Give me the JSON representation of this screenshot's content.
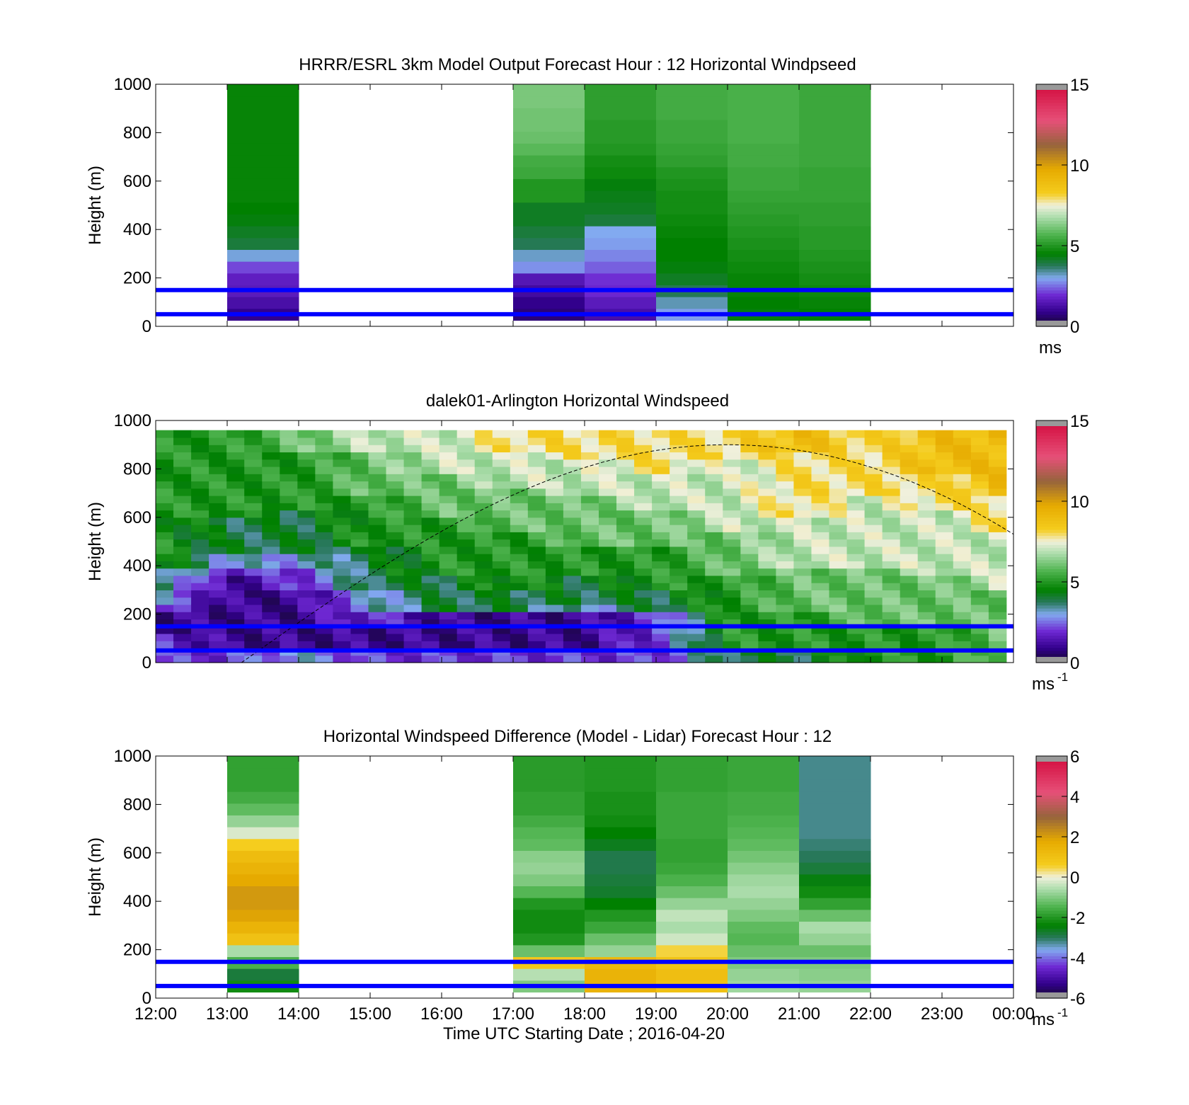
{
  "figure": {
    "xlabel": "Time UTC  Starting Date ; 2016-04-20",
    "x_ticks": [
      "12:00",
      "13:00",
      "14:00",
      "15:00",
      "16:00",
      "17:00",
      "18:00",
      "19:00",
      "20:00",
      "21:00",
      "22:00",
      "23:00",
      "00:00"
    ]
  },
  "chart_data": [
    {
      "type": "heatmap",
      "title": "HRRR/ESRL 3km Model Output   Forecast Hour : 12 Horizontal Windpseed",
      "ylabel": "Height (m)",
      "y_ticks": [
        "0",
        "200",
        "400",
        "600",
        "800",
        "1000"
      ],
      "xlim_hours": [
        12,
        24
      ],
      "ylim": [
        0,
        1000
      ],
      "colorbar": {
        "ticks": [
          "0",
          "5",
          "10",
          "15"
        ],
        "range": [
          0,
          15
        ],
        "unit": "ms"
      },
      "reference_lines_m": [
        50,
        150
      ],
      "columns": [
        {
          "t": 13,
          "h": [
            0.9,
            1.3,
            1.6,
            1.7,
            2.2,
            3.1,
            4.0,
            4.2,
            4.4,
            4.5,
            4.6,
            4.6,
            4.6,
            4.6,
            4.6,
            4.6,
            4.6,
            4.6,
            4.6,
            4.6
          ]
        },
        {
          "t": 17,
          "h": [
            0.7,
            0.9,
            1.2,
            1.5,
            2.8,
            3.2,
            3.8,
            4.0,
            4.2,
            4.2,
            5.0,
            5.0,
            5.4,
            5.5,
            5.8,
            6.0,
            6.1,
            6.1,
            6.2,
            6.2
          ]
        },
        {
          "t": 18,
          "h": [
            1.3,
            1.6,
            1.9,
            2.0,
            2.4,
            2.7,
            2.9,
            3.0,
            4.0,
            4.2,
            4.3,
            4.4,
            4.7,
            4.8,
            5.0,
            5.1,
            5.1,
            5.2,
            5.2,
            5.2
          ]
        },
        {
          "t": 19,
          "h": [
            2.9,
            3.3,
            3.8,
            4.2,
            4.4,
            4.5,
            4.5,
            4.6,
            4.7,
            4.8,
            4.8,
            4.9,
            5.0,
            5.2,
            5.3,
            5.4,
            5.4,
            5.5,
            5.5,
            5.5
          ]
        },
        {
          "t": 20,
          "h": [
            4.4,
            4.5,
            4.6,
            4.6,
            4.7,
            4.8,
            4.9,
            5.0,
            5.1,
            5.2,
            5.3,
            5.4,
            5.4,
            5.5,
            5.5,
            5.6,
            5.6,
            5.6,
            5.6,
            5.6
          ]
        },
        {
          "t": 21,
          "h": [
            4.5,
            4.6,
            4.7,
            4.8,
            4.9,
            5.0,
            5.1,
            5.1,
            5.2,
            5.2,
            5.3,
            5.3,
            5.3,
            5.4,
            5.4,
            5.4,
            5.4,
            5.4,
            5.4,
            5.4
          ]
        }
      ]
    },
    {
      "type": "heatmap",
      "title": "dalek01-Arlington  Horizontal Windspeed",
      "ylabel": "Height (m)",
      "y_ticks": [
        "0",
        "200",
        "400",
        "600",
        "800",
        "1000"
      ],
      "xlim_hours": [
        12,
        24
      ],
      "ylim": [
        0,
        1000
      ],
      "colorbar": {
        "ticks": [
          "0",
          "5",
          "10",
          "15"
        ],
        "range": [
          0,
          15
        ],
        "unit": "ms",
        "unit_exp": "-1"
      },
      "reference_lines_m": [
        50,
        150
      ],
      "boundary_layer_curve": {
        "x_hours": [
          13.2,
          20,
          24
        ],
        "y_m": [
          0,
          900,
          530
        ]
      },
      "description_grid": "interpolated field, see profile keys",
      "profiles": [
        {
          "t": 12.0,
          "h": [
            2,
            2,
            1,
            1,
            2,
            3,
            4,
            4,
            5,
            5,
            5,
            5,
            5,
            5,
            5,
            5,
            5,
            5,
            5,
            5
          ]
        },
        {
          "t": 13.0,
          "h": [
            2,
            1,
            1,
            1,
            1,
            1,
            1,
            2,
            3,
            4,
            4,
            4,
            5,
            5,
            5,
            5,
            5,
            5,
            5,
            5
          ]
        },
        {
          "t": 14.0,
          "h": [
            3,
            1,
            1,
            1,
            1,
            1,
            2,
            2,
            3,
            4,
            4,
            4,
            4,
            5,
            5,
            5,
            5,
            5,
            6,
            6
          ]
        },
        {
          "t": 15.0,
          "h": [
            2,
            1,
            1,
            2,
            3,
            3,
            4,
            4,
            4,
            4,
            5,
            5,
            5,
            5,
            6,
            6,
            6,
            6,
            7,
            7
          ]
        },
        {
          "t": 16.0,
          "h": [
            2,
            1,
            1,
            1,
            4,
            4,
            4,
            5,
            5,
            5,
            5,
            5,
            6,
            6,
            6,
            6,
            7,
            7,
            7,
            7
          ]
        },
        {
          "t": 17.0,
          "h": [
            2,
            1,
            1,
            1,
            4,
            4,
            5,
            5,
            5,
            5,
            5,
            6,
            6,
            6,
            6,
            7,
            7,
            7,
            8,
            8
          ]
        },
        {
          "t": 18.0,
          "h": [
            2,
            1,
            1,
            1,
            3,
            4,
            4,
            5,
            5,
            5,
            6,
            6,
            6,
            6,
            7,
            7,
            7,
            8,
            8,
            8
          ]
        },
        {
          "t": 19.0,
          "h": [
            2,
            2,
            2,
            2,
            4,
            4,
            5,
            5,
            5,
            5,
            6,
            6,
            6,
            7,
            7,
            7,
            8,
            8,
            8,
            8
          ]
        },
        {
          "t": 20.0,
          "h": [
            4,
            5,
            5,
            5,
            5,
            5,
            5,
            6,
            6,
            6,
            6,
            7,
            7,
            7,
            7,
            7,
            7,
            8,
            8,
            8
          ]
        },
        {
          "t": 21.0,
          "h": [
            4,
            5,
            5,
            5,
            6,
            6,
            6,
            6,
            7,
            7,
            7,
            7,
            8,
            8,
            8,
            8,
            8,
            8,
            9,
            9
          ]
        },
        {
          "t": 22.0,
          "h": [
            5,
            5,
            5,
            6,
            6,
            6,
            6,
            6,
            7,
            7,
            7,
            7,
            7,
            7,
            8,
            8,
            8,
            8,
            8,
            8
          ]
        },
        {
          "t": 23.0,
          "h": [
            5,
            5,
            5,
            6,
            6,
            6,
            6,
            7,
            7,
            7,
            7,
            7,
            7,
            8,
            8,
            8,
            9,
            9,
            9,
            9
          ]
        },
        {
          "t": 23.8,
          "h": [
            6,
            6,
            6,
            6,
            6,
            6,
            7,
            7,
            7,
            7,
            7,
            8,
            8,
            8,
            9,
            9,
            9,
            9,
            9,
            9
          ]
        }
      ]
    },
    {
      "type": "heatmap",
      "title": "Horizontal Windspeed Difference (Model - Lidar) Forecast Hour : 12",
      "ylabel": "Height (m)",
      "y_ticks": [
        "0",
        "200",
        "400",
        "600",
        "800",
        "1000"
      ],
      "xlim_hours": [
        12,
        24
      ],
      "ylim": [
        0,
        1000
      ],
      "colorbar": {
        "ticks": [
          "-6",
          "-4",
          "-2",
          "0",
          "2",
          "4",
          "6"
        ],
        "range": [
          -6,
          6
        ],
        "unit": "ms",
        "unit_exp": "-1"
      },
      "reference_lines_m": [
        50,
        150
      ],
      "columns": [
        {
          "t": 13,
          "h": [
            -2.2,
            -2.8,
            -1.5,
            -0.6,
            1.0,
            1.5,
            1.9,
            2.1,
            2.1,
            1.8,
            1.5,
            1.2,
            0.6,
            -0.2,
            -0.8,
            -1.3,
            -1.6,
            -1.8,
            -1.8,
            -1.8
          ]
        },
        {
          "t": 17,
          "h": [
            -1.0,
            -0.5,
            0.8,
            -1.2,
            -2.0,
            -2.2,
            -2.2,
            -2.0,
            -1.4,
            -1.0,
            -0.8,
            -0.9,
            -1.3,
            -1.4,
            -1.6,
            -1.8,
            -1.8,
            -1.9,
            -1.9,
            -1.9
          ]
        },
        {
          "t": 18,
          "h": [
            1.5,
            1.5,
            1.3,
            -0.8,
            -1.2,
            -1.7,
            -2.0,
            -2.4,
            -2.7,
            -2.8,
            -2.9,
            -2.9,
            -2.6,
            -2.4,
            -2.2,
            -2.1,
            -2.1,
            -2.0,
            -2.0,
            -2.0
          ]
        },
        {
          "t": 19,
          "h": [
            1.0,
            1.1,
            0.9,
            0.5,
            -0.3,
            -0.6,
            -0.4,
            -0.8,
            -1.2,
            -1.5,
            -1.7,
            -1.8,
            -1.8,
            -1.7,
            -1.7,
            -1.7,
            -1.7,
            -1.8,
            -1.8,
            -1.8
          ]
        },
        {
          "t": 20,
          "h": [
            -0.7,
            -0.8,
            -1.0,
            -1.2,
            -1.4,
            -1.3,
            -1.0,
            -0.8,
            -0.6,
            -0.7,
            -0.9,
            -1.1,
            -1.3,
            -1.4,
            -1.5,
            -1.6,
            -1.6,
            -1.7,
            -1.7,
            -1.7
          ]
        },
        {
          "t": 21,
          "h": [
            -0.8,
            -0.9,
            -1.0,
            -1.2,
            -0.8,
            -0.6,
            -1.2,
            -1.8,
            -2.2,
            -2.5,
            -2.8,
            -3.0,
            -3.1,
            -3.2,
            -3.2,
            -3.2,
            -3.2,
            -3.2,
            -3.2,
            -3.2
          ]
        }
      ]
    }
  ]
}
